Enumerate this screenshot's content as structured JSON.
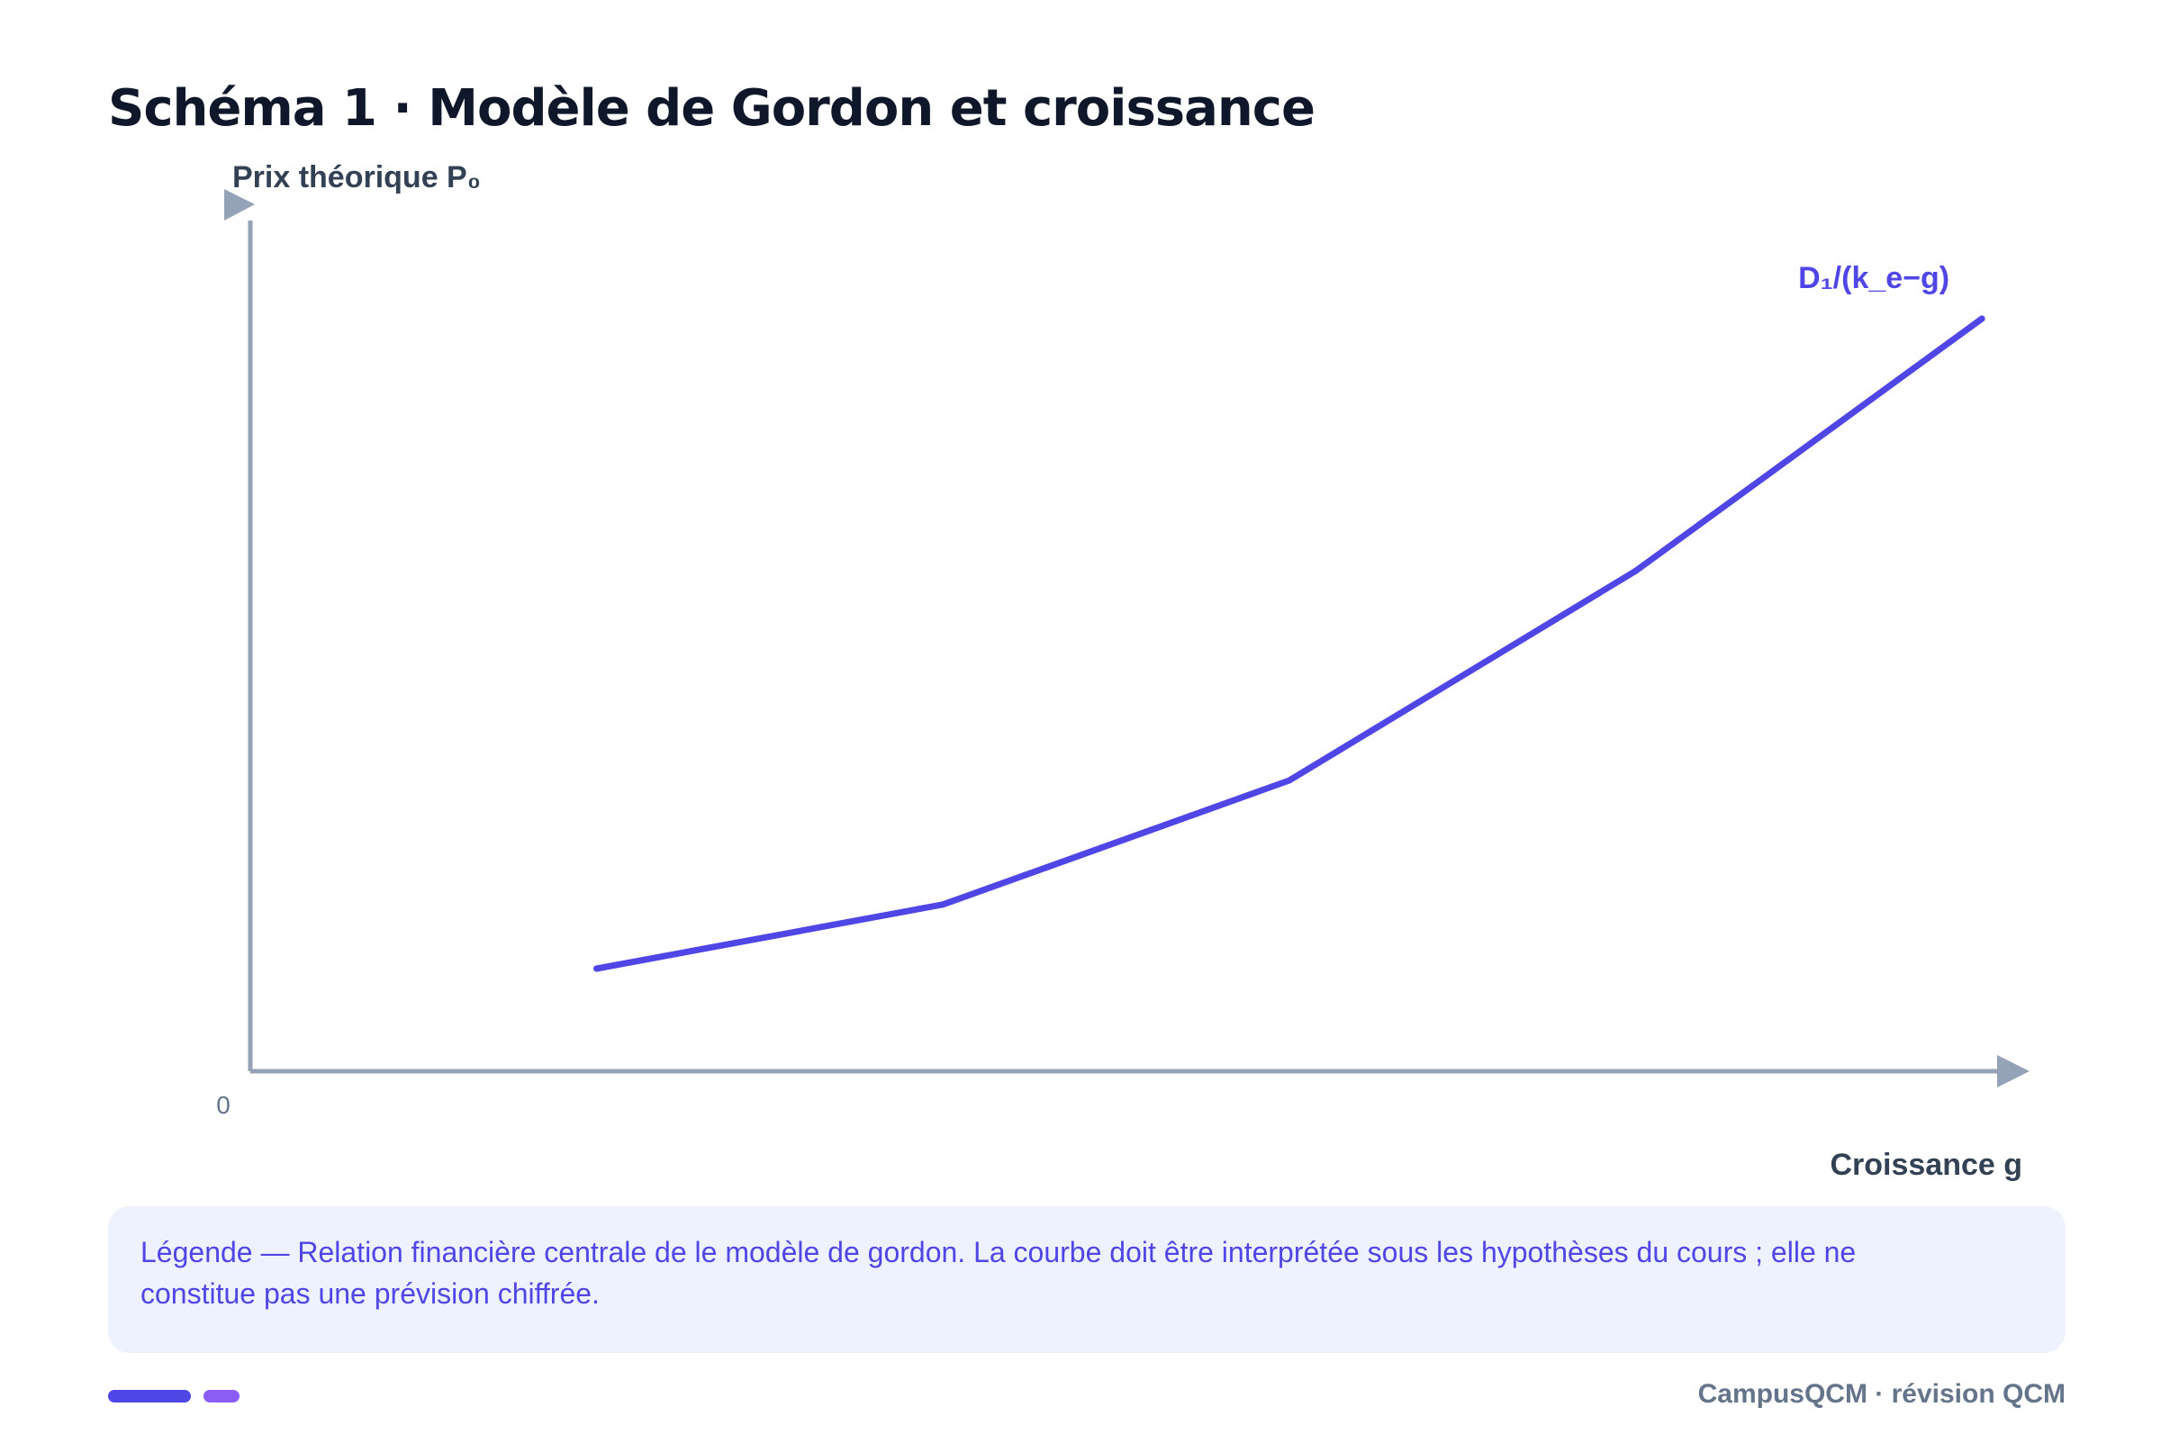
{
  "title": "Schéma 1 · Modèle de Gordon et croissance",
  "chart_data": {
    "type": "line",
    "ylabel": "Prix théorique P₀",
    "xlabel": "Croissance g",
    "origin_label": "0",
    "series": [
      {
        "name": "D₁/(k_e−g)",
        "color": "#4f46e5",
        "x": [
          1,
          2,
          3,
          4,
          5
        ],
        "y": [
          12,
          19.5,
          34,
          58.5,
          88
        ]
      }
    ],
    "xlim": [
      0,
      5.2
    ],
    "ylim": [
      0,
      100
    ],
    "grid": false,
    "legend": "end-of-line label"
  },
  "legend": {
    "text": "Légende — Relation financière centrale de le modèle de gordon. La courbe doit être interprétée sous les hypothèses du cours ; elle ne constitue pas une prévision chiffrée."
  },
  "footer": {
    "brand": "CampusQCM · révision QCM",
    "accent_colors": [
      "#4f46e5",
      "#8b5cf6"
    ]
  },
  "colors": {
    "axis": "#94a3b8",
    "title": "#0f172a",
    "axis_label": "#334155",
    "tick": "#64748b",
    "legend_bg": "#eef2fe"
  }
}
